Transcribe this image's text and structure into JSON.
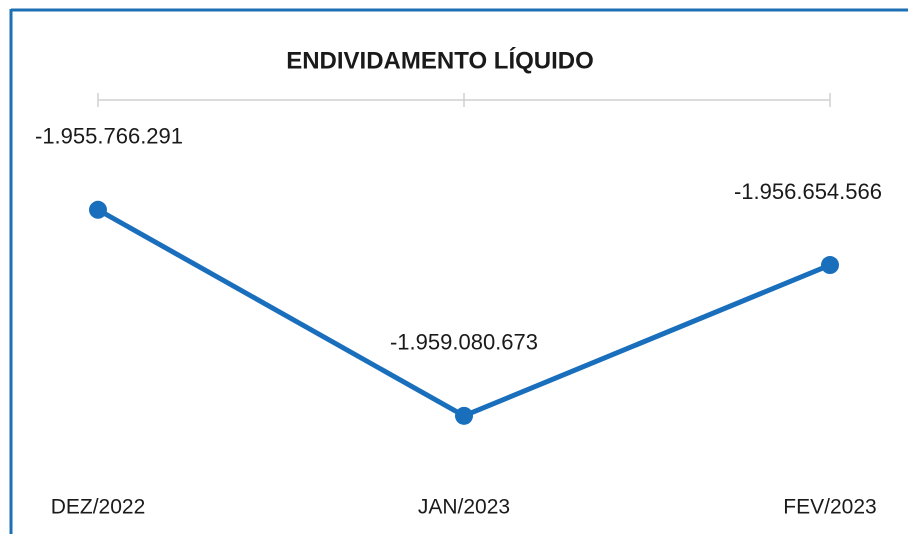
{
  "chart_data": {
    "type": "line",
    "title": "ENDIVIDAMENTO LÍQUIDO",
    "categories": [
      "DEZ/2022",
      "JAN/2023",
      "FEV/2023"
    ],
    "series": [
      {
        "name": "Endividamento Líquido",
        "color": "#1a6fbd",
        "values": [
          -1955766291,
          -1959080673,
          -1956654566
        ],
        "value_labels": [
          "-1.955.766.291",
          "-1.959.080.673",
          "-1.956.654.566"
        ]
      }
    ],
    "ylim": [
      -1960000000,
      -1954000000
    ]
  }
}
